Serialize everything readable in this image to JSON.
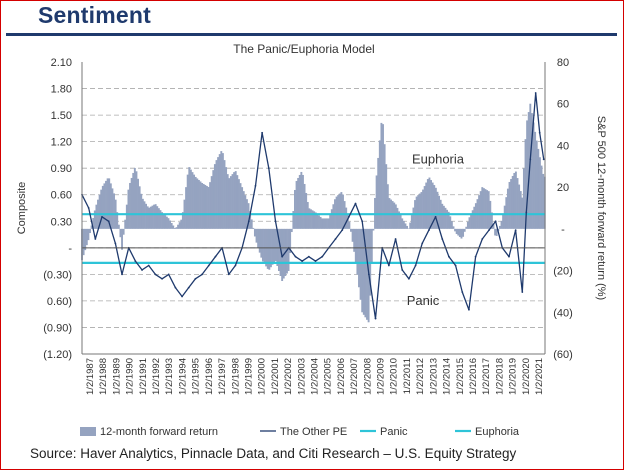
{
  "header": {
    "title": "Sentiment"
  },
  "source_note": "Source: Haver Analytics, Pinnacle Data, and Citi Research – U.S. Equity Strategy",
  "colors": {
    "bars": "#95a3c0",
    "composite": "#1f3a6d",
    "panic": "#2ec4d8",
    "euphoria": "#2ec4d8",
    "heading": "#1f3a6d"
  },
  "chart_data": {
    "type": "line",
    "title": "The Panic/Euphoria Model",
    "ylabel": "Composite",
    "y2label": "S&P 500 12-month forward return (%)",
    "ylim": [
      -1.2,
      2.1
    ],
    "y2lim": [
      -60,
      80
    ],
    "left_ticks": [
      "2.10",
      "1.80",
      "1.50",
      "1.20",
      "0.90",
      "0.60",
      "0.30",
      "-",
      "(0.30)",
      "0.60)",
      "(0.90)",
      "(1.20)"
    ],
    "right_ticks": [
      "80",
      "60",
      "40",
      "20",
      "-",
      "(20)",
      "(40)",
      "(60)"
    ],
    "x_ticks": [
      "1/2/1987",
      "1/2/1988",
      "1/2/1989",
      "1/2/1990",
      "1/2/1991",
      "1/2/1992",
      "1/2/1993",
      "1/2/1994",
      "1/2/1995",
      "1/2/1996",
      "1/2/1997",
      "1/2/1998",
      "1/2/1999",
      "1/2/2000",
      "1/2/2001",
      "1/2/2002",
      "1/2/2003",
      "1/2/2004",
      "1/2/2005",
      "1/2/2006",
      "1/2/2007",
      "1/2/2008",
      "1/2/2009",
      "1/2/2010",
      "1/2/2011",
      "1/2/2012",
      "1/2/2013",
      "1/2/2014",
      "1/2/2015",
      "1/2/2016",
      "1/2/2017",
      "1/2/2018",
      "1/2/2019",
      "1/2/2020",
      "1/2/2021"
    ],
    "grid": true,
    "annotations": [
      {
        "text": "Euphoria",
        "x": 2014.2,
        "y": 1.0
      },
      {
        "text": "Panic",
        "x": 2012.4,
        "y": -0.6
      }
    ],
    "reference_lines": [
      {
        "name": "Panic",
        "value": -0.17
      },
      {
        "name": "Euphoria",
        "value": 0.38
      }
    ],
    "series": [
      {
        "name": "12-month forward return",
        "kind": "area",
        "axis": "right",
        "x": [
          1987.0,
          1987.5,
          1988.0,
          1988.5,
          1989.0,
          1989.5,
          1990.0,
          1990.5,
          1991.0,
          1991.5,
          1992.0,
          1992.5,
          1993.0,
          1993.5,
          1994.0,
          1994.5,
          1995.0,
          1995.5,
          1996.0,
          1996.5,
          1997.0,
          1997.5,
          1998.0,
          1998.5,
          1999.0,
          1999.5,
          2000.0,
          2000.5,
          2001.0,
          2001.5,
          2002.0,
          2002.5,
          2003.0,
          2003.5,
          2004.0,
          2004.5,
          2005.0,
          2005.5,
          2006.0,
          2006.5,
          2007.0,
          2007.5,
          2008.0,
          2008.5,
          2009.0,
          2009.5,
          2010.0,
          2010.5,
          2011.0,
          2011.5,
          2012.0,
          2012.5,
          2013.0,
          2013.5,
          2014.0,
          2014.5,
          2015.0,
          2015.5,
          2016.0,
          2016.5,
          2017.0,
          2017.5,
          2018.0,
          2018.5,
          2019.0,
          2019.5,
          2020.0,
          2020.3,
          2020.6,
          2021.0,
          2021.3,
          2021.6
        ],
        "values": [
          -15,
          -5,
          10,
          20,
          25,
          15,
          -10,
          20,
          30,
          15,
          10,
          12,
          8,
          5,
          0,
          5,
          30,
          25,
          22,
          20,
          32,
          38,
          24,
          28,
          20,
          12,
          -5,
          -15,
          -20,
          -15,
          -25,
          -20,
          22,
          28,
          10,
          8,
          5,
          5,
          15,
          18,
          5,
          -15,
          -40,
          -45,
          20,
          55,
          15,
          12,
          5,
          0,
          15,
          18,
          25,
          20,
          12,
          8,
          -2,
          -5,
          5,
          12,
          20,
          18,
          -5,
          5,
          22,
          28,
          15,
          50,
          60,
          45,
          35,
          25
        ]
      },
      {
        "name": "The Other PE",
        "kind": "line",
        "axis": "left",
        "x": [
          1987.0,
          1987.5,
          1988.0,
          1988.5,
          1989.0,
          1989.5,
          1990.0,
          1990.5,
          1991.0,
          1991.5,
          1992.0,
          1992.5,
          1993.0,
          1993.5,
          1994.0,
          1994.5,
          1995.0,
          1995.5,
          1996.0,
          1996.5,
          1997.0,
          1997.5,
          1998.0,
          1998.5,
          1999.0,
          1999.5,
          2000.0,
          2000.5,
          2001.0,
          2001.5,
          2002.0,
          2002.5,
          2003.0,
          2003.5,
          2004.0,
          2004.5,
          2005.0,
          2005.5,
          2006.0,
          2006.5,
          2007.0,
          2007.5,
          2008.0,
          2008.5,
          2009.0,
          2009.5,
          2010.0,
          2010.5,
          2011.0,
          2011.5,
          2012.0,
          2012.5,
          2013.0,
          2013.5,
          2014.0,
          2014.5,
          2015.0,
          2015.5,
          2016.0,
          2016.5,
          2017.0,
          2017.5,
          2018.0,
          2018.5,
          2019.0,
          2019.5,
          2020.0,
          2020.3,
          2020.6,
          2021.0,
          2021.3,
          2021.6
        ],
        "values": [
          0.6,
          0.45,
          0.1,
          0.35,
          0.3,
          0.05,
          -0.3,
          0.0,
          -0.15,
          -0.25,
          -0.2,
          -0.3,
          -0.35,
          -0.3,
          -0.45,
          -0.55,
          -0.45,
          -0.35,
          -0.3,
          -0.2,
          -0.1,
          0.0,
          -0.3,
          -0.2,
          0.0,
          0.3,
          0.7,
          1.3,
          0.9,
          0.3,
          -0.1,
          0.0,
          -0.1,
          -0.15,
          -0.1,
          -0.15,
          -0.1,
          0.0,
          0.1,
          0.2,
          0.35,
          0.5,
          0.3,
          -0.3,
          -0.8,
          0.0,
          -0.2,
          0.1,
          -0.25,
          -0.35,
          -0.2,
          0.05,
          0.2,
          0.35,
          0.1,
          -0.1,
          -0.2,
          -0.5,
          -0.7,
          -0.1,
          0.1,
          0.2,
          0.3,
          0.0,
          -0.1,
          0.2,
          -0.5,
          0.4,
          1.0,
          1.75,
          1.3,
          1.0
        ]
      }
    ],
    "legend": {
      "position": "bottom",
      "entries": [
        {
          "label": "12-month forward return",
          "style": "box"
        },
        {
          "label": "The Other PE",
          "style": "line"
        },
        {
          "label": "Panic",
          "style": "line"
        },
        {
          "label": "Euphoria",
          "style": "line"
        }
      ]
    }
  }
}
